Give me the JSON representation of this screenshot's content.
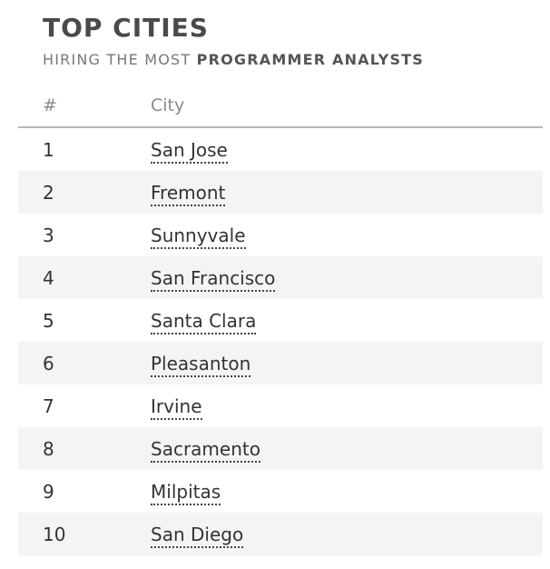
{
  "header": {
    "title": "TOP CITIES",
    "subtitle_prefix": "HIRING THE MOST ",
    "subtitle_emphasis": "PROGRAMMER ANALYSTS"
  },
  "table": {
    "columns": {
      "rank": "#",
      "city": "City"
    },
    "rows": [
      {
        "rank": "1",
        "city": "San Jose"
      },
      {
        "rank": "2",
        "city": "Fremont"
      },
      {
        "rank": "3",
        "city": "Sunnyvale"
      },
      {
        "rank": "4",
        "city": "San Francisco"
      },
      {
        "rank": "5",
        "city": "Santa Clara"
      },
      {
        "rank": "6",
        "city": "Pleasanton"
      },
      {
        "rank": "7",
        "city": "Irvine"
      },
      {
        "rank": "8",
        "city": "Sacramento"
      },
      {
        "rank": "9",
        "city": "Milpitas"
      },
      {
        "rank": "10",
        "city": "San Diego"
      }
    ]
  }
}
